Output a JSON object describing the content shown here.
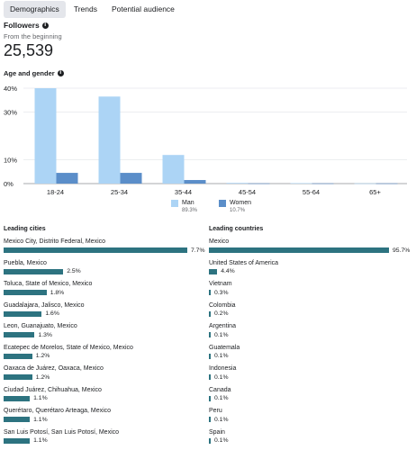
{
  "tabs": [
    "Demographics",
    "Trends",
    "Potential audience"
  ],
  "active_tab": "Demographics",
  "followers": {
    "title": "Followers",
    "subtitle": "From the beginning",
    "count": "25,539"
  },
  "age_gender": {
    "title": "Age and gender",
    "legend": [
      {
        "label": "Man",
        "pct": "89.3%",
        "color": "#acd4f5"
      },
      {
        "label": "Women",
        "pct": "10.7%",
        "color": "#5b8ec9"
      }
    ]
  },
  "chart_data": {
    "type": "bar",
    "categories": [
      "18-24",
      "25-34",
      "35-44",
      "45-54",
      "55-64",
      "65+"
    ],
    "series": [
      {
        "name": "Man",
        "values": [
          40,
          36.5,
          12,
          0.3,
          0.2,
          0.1
        ],
        "color": "#acd4f5"
      },
      {
        "name": "Women",
        "values": [
          4.5,
          4.5,
          1.5,
          0.1,
          0.1,
          0.1
        ],
        "color": "#5b8ec9"
      }
    ],
    "yticks": [
      "0%",
      "10%",
      "30%",
      "40%"
    ],
    "ylim": [
      0,
      40
    ],
    "grid": true
  },
  "leading_cities": {
    "title": "Leading cities",
    "rows": [
      {
        "name": "Mexico City, Distrito Federal, Mexico",
        "pct": "7.7%",
        "value": 7.7
      },
      {
        "name": "Puebla, Mexico",
        "pct": "2.5%",
        "value": 2.5
      },
      {
        "name": "Toluca, State of Mexico, Mexico",
        "pct": "1.8%",
        "value": 1.8
      },
      {
        "name": "Guadalajara, Jalisco, Mexico",
        "pct": "1.6%",
        "value": 1.6
      },
      {
        "name": "Leon, Guanajuato, Mexico",
        "pct": "1.3%",
        "value": 1.3
      },
      {
        "name": "Ecatepec de Morelos, State of Mexico, Mexico",
        "pct": "1.2%",
        "value": 1.2
      },
      {
        "name": "Oaxaca de Juárez, Oaxaca, Mexico",
        "pct": "1.2%",
        "value": 1.2
      },
      {
        "name": "Ciudad Juárez, Chihuahua, Mexico",
        "pct": "1.1%",
        "value": 1.1
      },
      {
        "name": "Querétaro, Querétaro Arteaga, Mexico",
        "pct": "1.1%",
        "value": 1.1
      },
      {
        "name": "San Luis Potosí, San Luis Potosí, Mexico",
        "pct": "1.1%",
        "value": 1.1
      }
    ]
  },
  "leading_countries": {
    "title": "Leading countries",
    "rows": [
      {
        "name": "Mexico",
        "pct": "95.7%",
        "value": 95.7
      },
      {
        "name": "United States of America",
        "pct": "4.4%",
        "value": 4.4
      },
      {
        "name": "Vietnam",
        "pct": "0.3%",
        "value": 0.3
      },
      {
        "name": "Colombia",
        "pct": "0.2%",
        "value": 0.2
      },
      {
        "name": "Argentina",
        "pct": "0.1%",
        "value": 0.1
      },
      {
        "name": "Guatemala",
        "pct": "0.1%",
        "value": 0.1
      },
      {
        "name": "Indonesia",
        "pct": "0.1%",
        "value": 0.1
      },
      {
        "name": "Canada",
        "pct": "0.1%",
        "value": 0.1
      },
      {
        "name": "Peru",
        "pct": "0.1%",
        "value": 0.1
      },
      {
        "name": "Spain",
        "pct": "0.1%",
        "value": 0.1
      }
    ]
  }
}
